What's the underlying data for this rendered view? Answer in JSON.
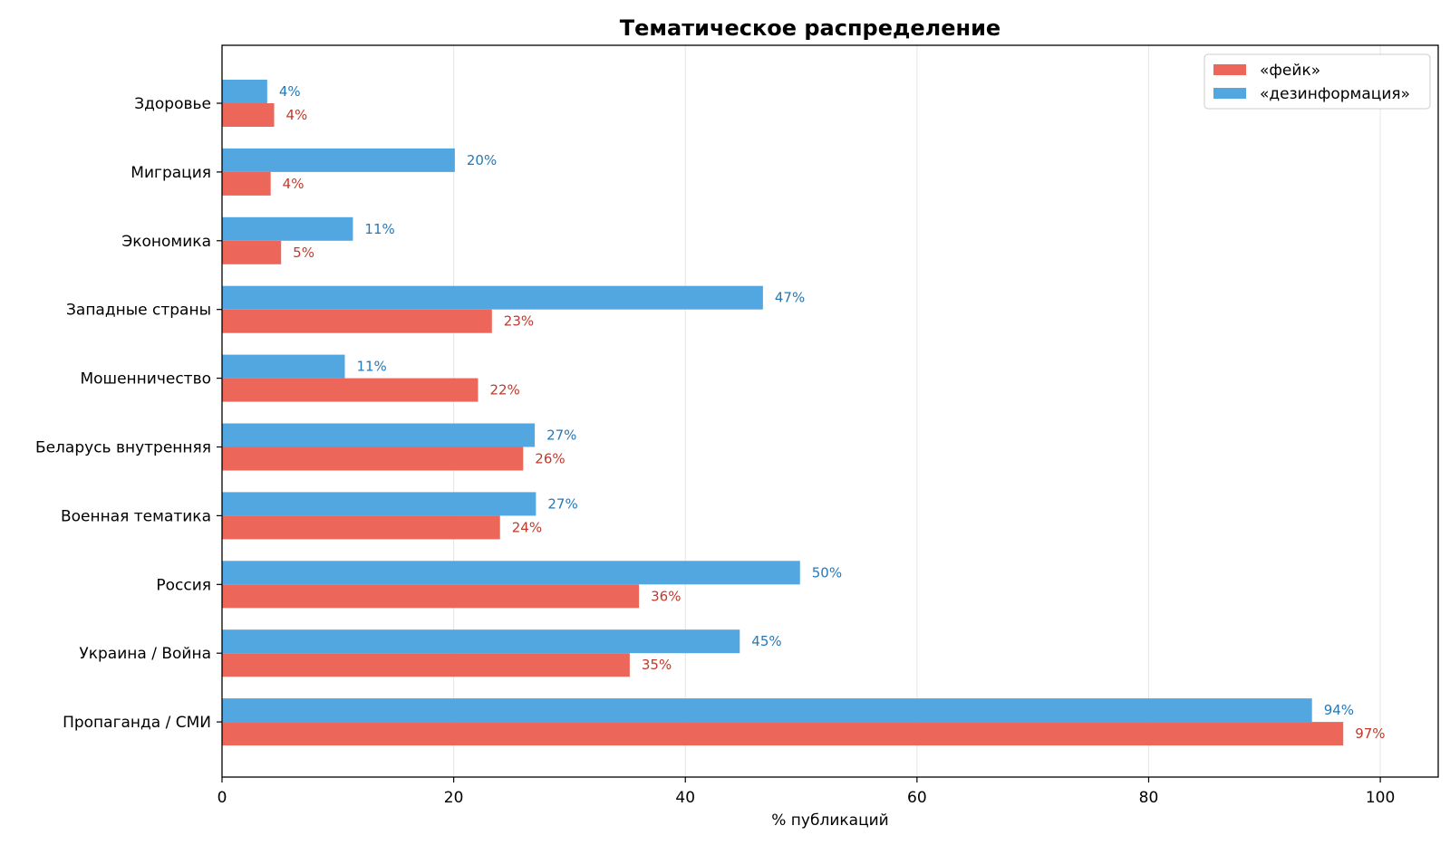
{
  "chart_data": {
    "type": "bar",
    "orientation": "horizontal",
    "title": "Тематическое распределение",
    "xlabel": "% публикаций",
    "ylabel": "",
    "xlim": [
      0,
      105
    ],
    "xticks": [
      0,
      20,
      40,
      60,
      80,
      100
    ],
    "grid": "vertical",
    "legend_position": "top-right",
    "categories": [
      "Здоровье",
      "Миграция",
      "Экономика",
      "Западные страны",
      "Мошенничество",
      "Беларусь внутренняя",
      "Военная тематика",
      "Россия",
      "Украина / Война",
      "Пропаганда / СМИ"
    ],
    "series": [
      {
        "name": "«фейк»",
        "color": "#ec675a",
        "label_color": "#c0392b",
        "values": [
          4.5,
          4.2,
          5.1,
          23.3,
          22.1,
          26.0,
          24.0,
          36.0,
          35.2,
          96.8
        ],
        "labels": [
          "4%",
          "4%",
          "5%",
          "23%",
          "22%",
          "26%",
          "24%",
          "36%",
          "35%",
          "97%"
        ]
      },
      {
        "name": "«дезинформация»",
        "color": "#53a7e0",
        "label_color": "#2479b8",
        "values": [
          3.9,
          20.1,
          11.3,
          46.7,
          10.6,
          27.0,
          27.1,
          49.9,
          44.7,
          94.1
        ],
        "labels": [
          "4%",
          "20%",
          "11%",
          "47%",
          "11%",
          "27%",
          "27%",
          "50%",
          "45%",
          "94%"
        ]
      }
    ]
  }
}
